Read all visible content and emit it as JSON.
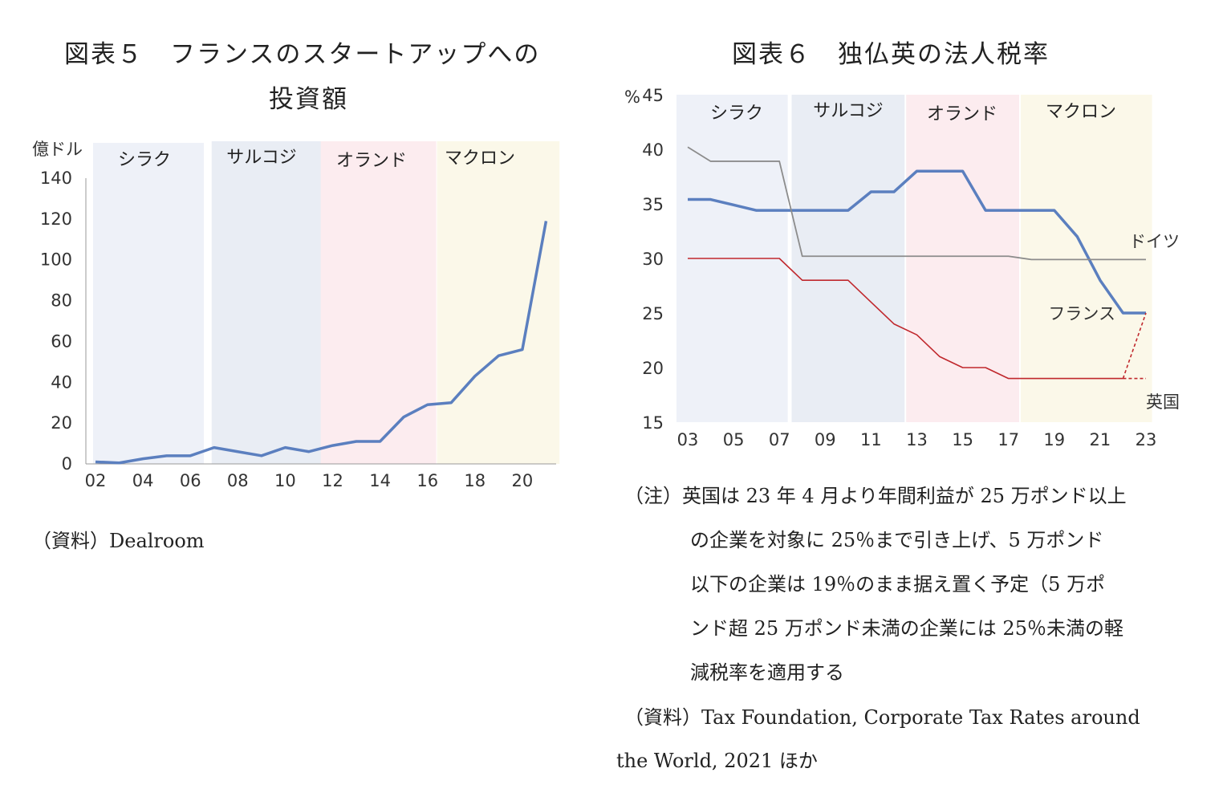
{
  "left": {
    "title_line1": "図表５　フランスのスタートアップへの",
    "title_line2": "投資額",
    "source": "（資料）Dealroom"
  },
  "right": {
    "title": "図表６　独仏英の法人税率",
    "note_lines": [
      "（注）英国は 23 年 4 月より年間利益が 25 万ポンド以上",
      "の企業を対象に 25％まで引き上げ、5 万ポンド",
      "以下の企業は 19％のまま据え置く予定（5 万ポ",
      "ンド超 25 万ポンド未満の企業には 25％未満の軽",
      "減税率を適用する"
    ],
    "source_lines": [
      "（資料）Tax Foundation, Corporate Tax Rates around",
      "the World, 2021 ほか"
    ]
  },
  "colors": {
    "chirac": "#eef1f8",
    "sarkozy": "#e9edf4",
    "hollande": "#fcecef",
    "macron": "#fbf8e9",
    "france": "#5b7fbf",
    "germany": "#8c8c8c",
    "uk": "#c0282d"
  },
  "chart_data": [
    {
      "type": "line",
      "ylabel": "億ドル",
      "ylim": [
        0,
        140
      ],
      "yticks": [
        0,
        20,
        40,
        60,
        80,
        100,
        120,
        140
      ],
      "xlim": [
        2002,
        2021.5
      ],
      "xticks": [
        "02",
        "04",
        "06",
        "08",
        "10",
        "12",
        "14",
        "16",
        "18",
        "20"
      ],
      "eras": [
        {
          "name": "シラク",
          "start": 2002,
          "end": 2006.5
        },
        {
          "name": "サルコジ",
          "start": 2007,
          "end": 2011.5
        },
        {
          "name": "オランド",
          "start": 2011.6,
          "end": 2016.3
        },
        {
          "name": "マクロン",
          "start": 2016.5,
          "end": 2021.5
        }
      ],
      "series": [
        {
          "x": [
            2002,
            2003,
            2004,
            2005,
            2006,
            2007,
            2008,
            2009,
            2010,
            2011,
            2012,
            2013,
            2014,
            2015,
            2016,
            2017,
            2018,
            2019,
            2020,
            2021
          ],
          "values": [
            1,
            0.5,
            2.5,
            4,
            4,
            8,
            6,
            4,
            8,
            6,
            9,
            11,
            11,
            23,
            29,
            30,
            43,
            53,
            56,
            119
          ]
        }
      ]
    },
    {
      "type": "line",
      "ylabel": "%",
      "ylim": [
        15,
        45
      ],
      "yticks": [
        15,
        20,
        25,
        30,
        35,
        40,
        45
      ],
      "xlim": [
        2002.5,
        2023.5
      ],
      "xticks": [
        "03",
        "05",
        "07",
        "09",
        "11",
        "13",
        "15",
        "17",
        "19",
        "21",
        "23"
      ],
      "eras": [
        {
          "name": "シラク",
          "start": 2002.5,
          "end": 2007.4
        },
        {
          "name": "サルコジ",
          "start": 2007.5,
          "end": 2012.5
        },
        {
          "name": "オランド",
          "start": 2012.5,
          "end": 2017.5
        },
        {
          "name": "マクロン",
          "start": 2017.5,
          "end": 2023.3
        }
      ],
      "series": [
        {
          "name": "フランス",
          "x": [
            2003,
            2004,
            2005,
            2006,
            2007,
            2008,
            2009,
            2010,
            2011,
            2012,
            2013,
            2014,
            2015,
            2016,
            2017,
            2018,
            2019,
            2020,
            2021,
            2022,
            2023
          ],
          "values": [
            35.4,
            35.4,
            34.9,
            34.4,
            34.4,
            34.4,
            34.4,
            34.4,
            36.1,
            36.1,
            38,
            38,
            38,
            34.4,
            34.4,
            34.4,
            34.4,
            32,
            28,
            25,
            25
          ]
        },
        {
          "name": "ドイツ",
          "x": [
            2003,
            2004,
            2005,
            2006,
            2007,
            2008,
            2009,
            2010,
            2011,
            2012,
            2013,
            2014,
            2015,
            2016,
            2017,
            2018,
            2019,
            2020,
            2021,
            2022,
            2023
          ],
          "values": [
            40.2,
            38.9,
            38.9,
            38.9,
            38.9,
            30.2,
            30.2,
            30.2,
            30.2,
            30.2,
            30.2,
            30.2,
            30.2,
            30.2,
            30.2,
            29.9,
            29.9,
            29.9,
            29.9,
            29.9,
            29.9
          ]
        },
        {
          "name": "英国",
          "x": [
            2003,
            2004,
            2005,
            2006,
            2007,
            2008,
            2009,
            2010,
            2011,
            2012,
            2013,
            2014,
            2015,
            2016,
            2017,
            2018,
            2019,
            2020,
            2021,
            2022
          ],
          "values": [
            30,
            30,
            30,
            30,
            30,
            28,
            28,
            28,
            26,
            24,
            23,
            21,
            20,
            20,
            19,
            19,
            19,
            19,
            19,
            19
          ],
          "projection": {
            "x": [
              2022,
              2023
            ],
            "high": [
              19,
              25
            ],
            "low": [
              19,
              19
            ]
          }
        }
      ]
    }
  ]
}
